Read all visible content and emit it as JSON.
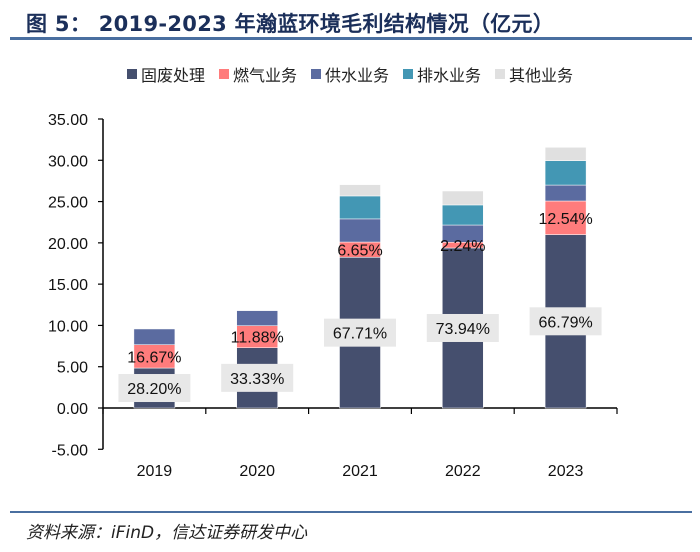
{
  "title": "图 5：  2019-2023 年瀚蓝环境毛利结构情况（亿元）",
  "source": "资料来源：iFinD，信达证券研发中心",
  "chart_data": {
    "type": "bar",
    "stacked": true,
    "categories": [
      "2019",
      "2020",
      "2021",
      "2022",
      "2023"
    ],
    "ylim": [
      -5,
      35
    ],
    "yticks": [
      "-5.00",
      "0.00",
      "5.00",
      "10.00",
      "15.00",
      "20.00",
      "25.00",
      "30.00",
      "35.00"
    ],
    "ytick_values": [
      -5,
      0,
      5,
      10,
      15,
      20,
      25,
      30,
      35
    ],
    "legend_position": "top",
    "grid": false,
    "series": [
      {
        "name": "固废处理",
        "color": "#454f6e",
        "values": [
          4.84,
          7.3,
          18.25,
          19.38,
          21.0
        ],
        "labels": [
          "28.20%",
          "33.33%",
          "67.71%",
          "73.94%",
          "66.79%"
        ]
      },
      {
        "name": "燃气业务",
        "color": "#ff7c7c",
        "values": [
          2.83,
          2.67,
          1.85,
          0.69,
          4.07
        ],
        "labels": [
          "16.67%",
          "11.88%",
          "6.65%",
          "2.24%",
          "12.54%"
        ]
      },
      {
        "name": "供水业务",
        "color": "#5b6ba0",
        "values": [
          1.9,
          1.82,
          2.8,
          2.09,
          1.93
        ],
        "labels": []
      },
      {
        "name": "排水业务",
        "color": "#4397b4",
        "values": [
          0,
          0,
          2.78,
          2.43,
          2.95
        ],
        "labels": []
      },
      {
        "name": "其他业务",
        "color": "#e0e0e0",
        "values": [
          0,
          0,
          1.37,
          1.69,
          1.62
        ],
        "labels": []
      }
    ]
  }
}
